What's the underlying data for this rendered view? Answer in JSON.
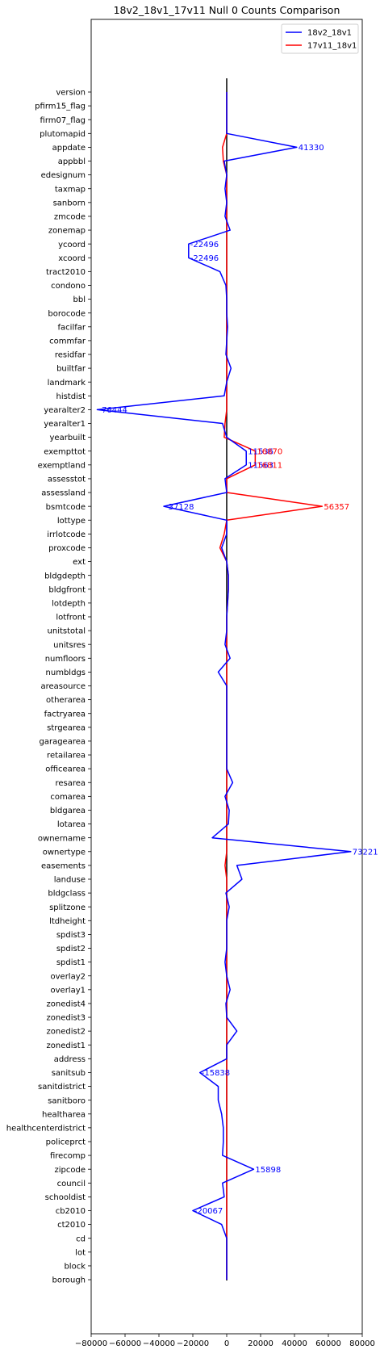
{
  "chart_data": {
    "type": "line",
    "orientation": "horizontal",
    "title": "18v2_18v1_17v11 Null 0 Counts Comparison",
    "xlabel": "",
    "ylabel": "",
    "xlim": [
      -80000,
      80000
    ],
    "xticks": [
      -80000,
      -60000,
      -40000,
      -20000,
      0,
      20000,
      40000,
      60000,
      80000
    ],
    "xtick_labels": [
      "−80000",
      "−60000",
      "−40000",
      "−20000",
      "0",
      "20000",
      "40000",
      "60000",
      "80000"
    ],
    "legend_position": "top-right",
    "grid": false,
    "categories": [
      "version",
      "pfirm15_flag",
      "firm07_flag",
      "plutomapid",
      "appdate",
      "appbbl",
      "edesignum",
      "taxmap",
      "sanborn",
      "zmcode",
      "zonemap",
      "ycoord",
      "xcoord",
      "tract2010",
      "condono",
      "bbl",
      "borocode",
      "facilfar",
      "commfar",
      "residfar",
      "builtfar",
      "landmark",
      "histdist",
      "yearalter2",
      "yearalter1",
      "yearbuilt",
      "exempttot",
      "exemptland",
      "assesstot",
      "assessland",
      "bsmtcode",
      "lottype",
      "irrlotcode",
      "proxcode",
      "ext",
      "bldgdepth",
      "bldgfront",
      "lotdepth",
      "lotfront",
      "unitstotal",
      "unitsres",
      "numfloors",
      "numbldgs",
      "areasource",
      "otherarea",
      "factryarea",
      "strgearea",
      "garagearea",
      "retailarea",
      "officearea",
      "resarea",
      "comarea",
      "bldgarea",
      "lotarea",
      "ownername",
      "ownertype",
      "easements",
      "landuse",
      "bldgclass",
      "splitzone",
      "ltdheight",
      "spdist3",
      "spdist2",
      "spdist1",
      "overlay2",
      "overlay1",
      "zonedist4",
      "zonedist3",
      "zonedist2",
      "zonedist1",
      "address",
      "sanitsub",
      "sanitdistrict",
      "sanitboro",
      "healtharea",
      "healthcenterdistrict",
      "policeprct",
      "firecomp",
      "zipcode",
      "council",
      "schooldist",
      "cb2010",
      "ct2010",
      "cd",
      "lot",
      "block",
      "borough"
    ],
    "series": [
      {
        "name": "18v2_18v1",
        "color": "#0000ff",
        "values": [
          0,
          0,
          0,
          0,
          41330,
          -1500,
          0,
          -1000,
          0,
          -1000,
          2000,
          -22496,
          -22496,
          -4000,
          -500,
          0,
          0,
          500,
          0,
          -500,
          2500,
          0,
          -1500,
          -76444,
          -2500,
          0,
          11536,
          11563,
          -1000,
          0,
          -37128,
          0,
          0,
          -3000,
          0,
          1000,
          1000,
          500,
          0,
          0,
          -1000,
          2000,
          -5000,
          0,
          0,
          0,
          0,
          0,
          0,
          0,
          3500,
          -1000,
          1500,
          1000,
          -8500,
          73221,
          6000,
          9000,
          -500,
          1500,
          0,
          0,
          0,
          -1000,
          0,
          2000,
          -500,
          0,
          6000,
          0,
          0,
          -15838,
          -5000,
          -5000,
          -3000,
          -2000,
          -2000,
          -2500,
          15898,
          -2500,
          -1500,
          -20067,
          -3000,
          0,
          0,
          0,
          0
        ],
        "annotations": [
          {
            "category": "appdate",
            "value": 41330,
            "label": "41330"
          },
          {
            "category": "ycoord",
            "value": -22496,
            "label": "-22496"
          },
          {
            "category": "xcoord",
            "value": -22496,
            "label": "-22496"
          },
          {
            "category": "yearalter2",
            "value": -76444,
            "label": "-76444"
          },
          {
            "category": "exempttot",
            "value": 11536,
            "label": "11536"
          },
          {
            "category": "exemptland",
            "value": 11563,
            "label": "11563"
          },
          {
            "category": "bsmtcode",
            "value": -37128,
            "label": "-37128"
          },
          {
            "category": "ownertype",
            "value": 73221,
            "label": "73221"
          },
          {
            "category": "sanitsub",
            "value": -15838,
            "label": "-15838"
          },
          {
            "category": "zipcode",
            "value": 15898,
            "label": "15898"
          },
          {
            "category": "cb2010",
            "value": -20067,
            "label": "-20067"
          }
        ]
      },
      {
        "name": "17v11_18v1",
        "color": "#ff0000",
        "values": [
          0,
          0,
          0,
          0,
          -2500,
          -2000,
          0,
          0,
          0,
          0,
          0,
          0,
          0,
          0,
          0,
          0,
          0,
          0,
          0,
          0,
          0,
          0,
          0,
          0,
          -1000,
          -1500,
          16870,
          16811,
          0,
          0,
          56357,
          0,
          -1500,
          -4000,
          0,
          1000,
          1000,
          500,
          0,
          0,
          0,
          0,
          0,
          0,
          0,
          0,
          0,
          0,
          0,
          0,
          0,
          0,
          0,
          0,
          0,
          0,
          -1000,
          0,
          0,
          0,
          0,
          0,
          0,
          0,
          0,
          0,
          0,
          0,
          0,
          0,
          0,
          0,
          0,
          0,
          0,
          0,
          0,
          0,
          0,
          0,
          0,
          0,
          0,
          0,
          0,
          0,
          0
        ],
        "annotations": [
          {
            "category": "exempttot",
            "value": 16870,
            "label": "16870"
          },
          {
            "category": "exemptland",
            "value": 16811,
            "label": "16811"
          },
          {
            "category": "bsmtcode",
            "value": 56357,
            "label": "56357"
          }
        ]
      }
    ]
  }
}
